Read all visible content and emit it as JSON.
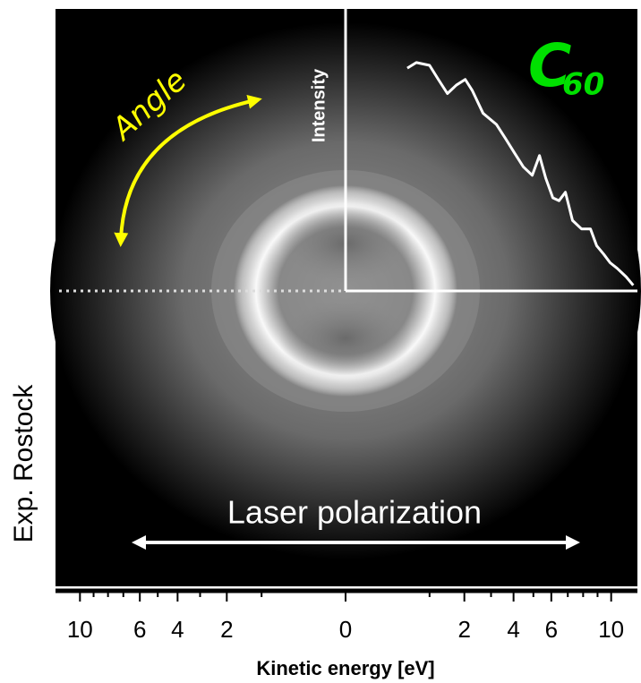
{
  "chart_data": {
    "type": "line",
    "xlabel": "Kinetic energy [eV]",
    "xscale": "sqrt",
    "xlim": [
      0,
      12
    ],
    "xticks": [
      0,
      2,
      4,
      6,
      10
    ],
    "minor_xticks": [
      1,
      3,
      5,
      7,
      8,
      9
    ],
    "ylabel": "Intensity",
    "ylim": [
      0,
      1
    ],
    "series": [
      {
        "color": "#ffffff",
        "x": [
          0.54,
          0.71,
          1.0,
          1.22,
          1.47,
          1.74,
          2.03,
          2.28,
          2.68,
          3.23,
          3.63,
          4.04,
          4.48,
          4.94,
          5.33,
          5.68,
          6.09,
          6.46,
          6.85,
          7.3,
          7.89,
          8.5,
          8.94,
          9.45,
          9.92,
          10.46,
          11.16,
          11.73
        ],
        "values": [
          0.79,
          0.81,
          0.8,
          0.75,
          0.7,
          0.73,
          0.75,
          0.71,
          0.63,
          0.59,
          0.54,
          0.49,
          0.44,
          0.41,
          0.48,
          0.4,
          0.33,
          0.32,
          0.35,
          0.25,
          0.22,
          0.22,
          0.16,
          0.13,
          0.1,
          0.08,
          0.05,
          0.02
        ]
      }
    ],
    "annotations": {
      "angle": "Angle",
      "polarization": "Laser polarization",
      "credit": "Exp. Rostock",
      "molecule": "C",
      "molecule_subscript": "60"
    }
  }
}
